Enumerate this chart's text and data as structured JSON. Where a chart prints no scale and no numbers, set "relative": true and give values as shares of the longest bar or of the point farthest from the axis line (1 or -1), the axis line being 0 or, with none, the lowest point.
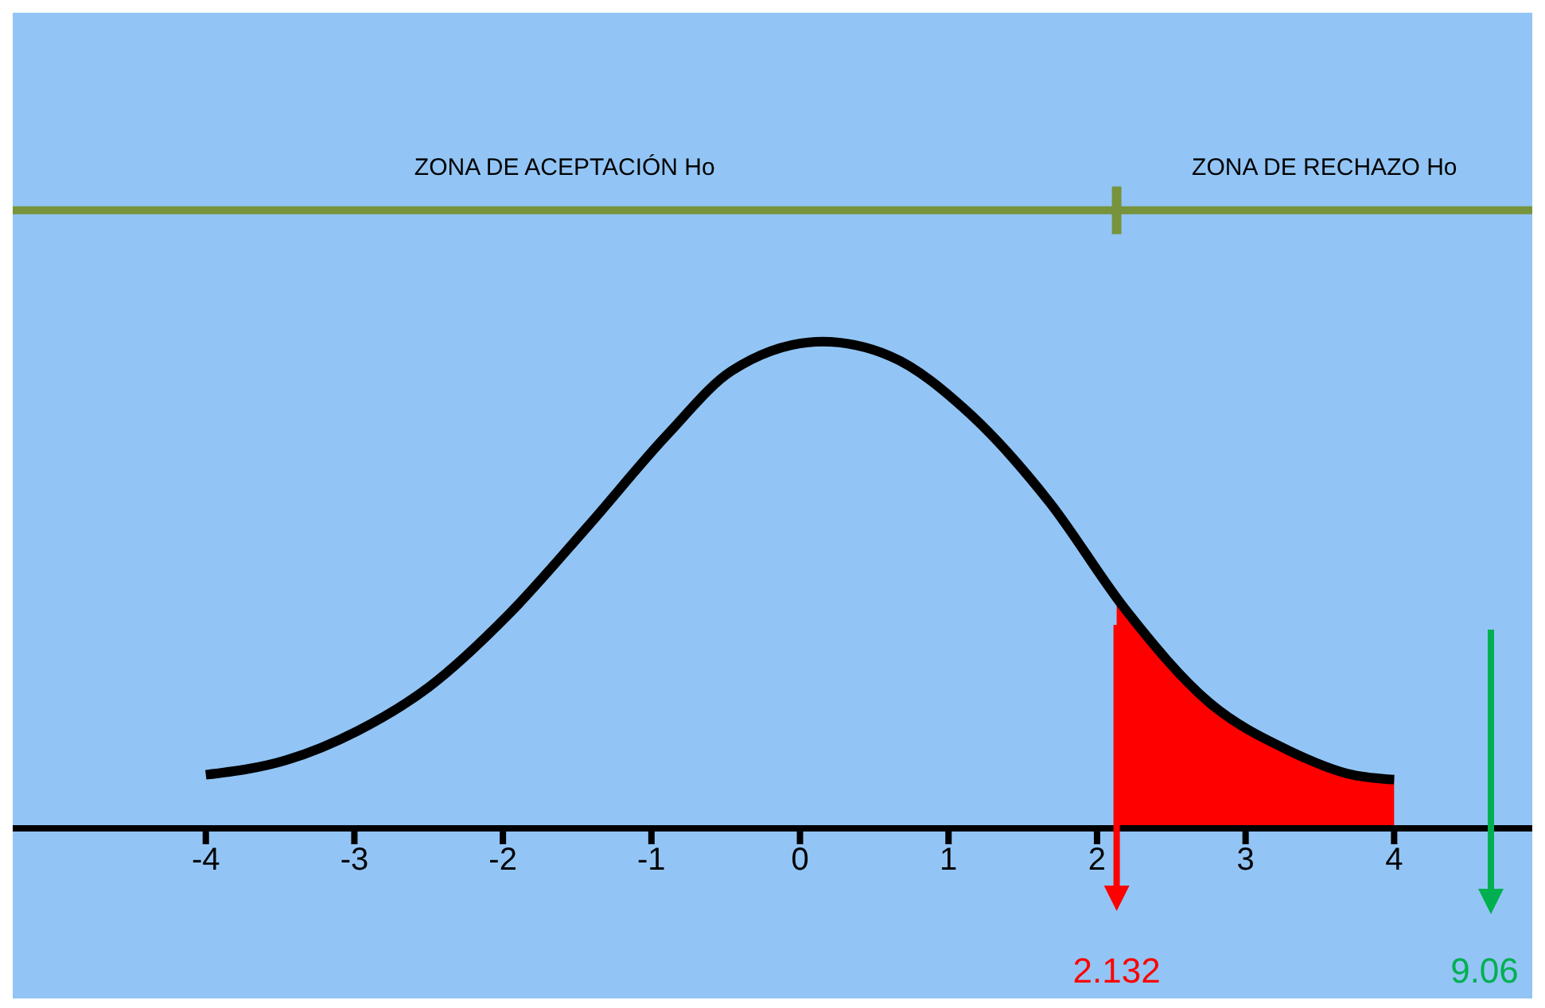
{
  "chart_data": {
    "type": "line",
    "relative": true,
    "x": [
      -4,
      -3.46,
      -2.98,
      -2.5,
      -1.96,
      -1.43,
      -0.89,
      -0.46,
      0.15,
      0.61,
      1.15,
      1.68,
      2.19,
      2.75,
      3.29,
      3.72,
      4
    ],
    "series": [
      {
        "type": "line",
        "color": "#000000",
        "values": [
          0.11,
          0.14,
          0.2,
          0.29,
          0.44,
          0.62,
          0.81,
          0.94,
          1,
          0.97,
          0.85,
          0.67,
          0.45,
          0.26,
          0.16,
          0.11,
          0.1
        ]
      },
      {
        "type": "area",
        "color": "#ff0000",
        "x": [
          2.132,
          2.19,
          2.75,
          3.29,
          3.72,
          4
        ],
        "values": [
          0.47,
          0.45,
          0.26,
          0.16,
          0.11,
          0.1
        ]
      }
    ],
    "xlim": [
      -5.3,
      4.93
    ],
    "xticks": [
      -4,
      -3,
      -2,
      -1,
      0,
      1,
      2,
      3,
      4
    ],
    "ref_lines": [
      {
        "axis": "x",
        "value": 2.132,
        "label": "2.132",
        "color": "#ff0000"
      },
      {
        "axis": "y",
        "value": 1.27,
        "color": "#77933c"
      }
    ],
    "annotations": [
      "ZONA DE ACEPTACIÓN Ho",
      "ZONA DE RECHAZO Ho",
      "9.06"
    ],
    "marker": "none",
    "grid": false,
    "legend": false
  }
}
